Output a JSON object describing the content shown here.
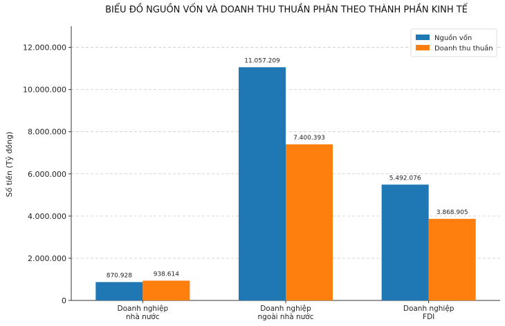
{
  "chart_data": {
    "type": "bar",
    "title": "BIỂU ĐỒ NGUỒN VỐN VÀ DOANH THU THUẦN PHÂN THEO THÀNH PHẦN KINH TẾ",
    "ylabel": "Số tiền (Tỷ đồng)",
    "xlabel": "",
    "categories": [
      [
        "Doanh nghiệp",
        "nhà nước"
      ],
      [
        "Doanh nghiệp",
        "ngoài nhà nước"
      ],
      [
        "Doanh nghiệp",
        "FDI"
      ]
    ],
    "series": [
      {
        "name": "Nguồn vốn",
        "color": "#1f77b4",
        "values": [
          870928,
          11057209,
          5492076
        ],
        "labels": [
          "870.928",
          "11.057.209",
          "5.492.076"
        ]
      },
      {
        "name": "Doanh thu thuần",
        "color": "#ff7f0e",
        "values": [
          938614,
          7400393,
          3868905
        ],
        "labels": [
          "938.614",
          "7.400.393",
          "3.868.905"
        ]
      }
    ],
    "ylim": [
      0,
      13000000
    ],
    "yticks": [
      0,
      2000000,
      4000000,
      6000000,
      8000000,
      10000000,
      12000000
    ],
    "ytick_labels": [
      "0",
      "2.000.000",
      "4.000.000",
      "6.000.000",
      "8.000.000",
      "10.000.000",
      "12.000.000"
    ],
    "grid": true,
    "legend_position": "top-right"
  }
}
